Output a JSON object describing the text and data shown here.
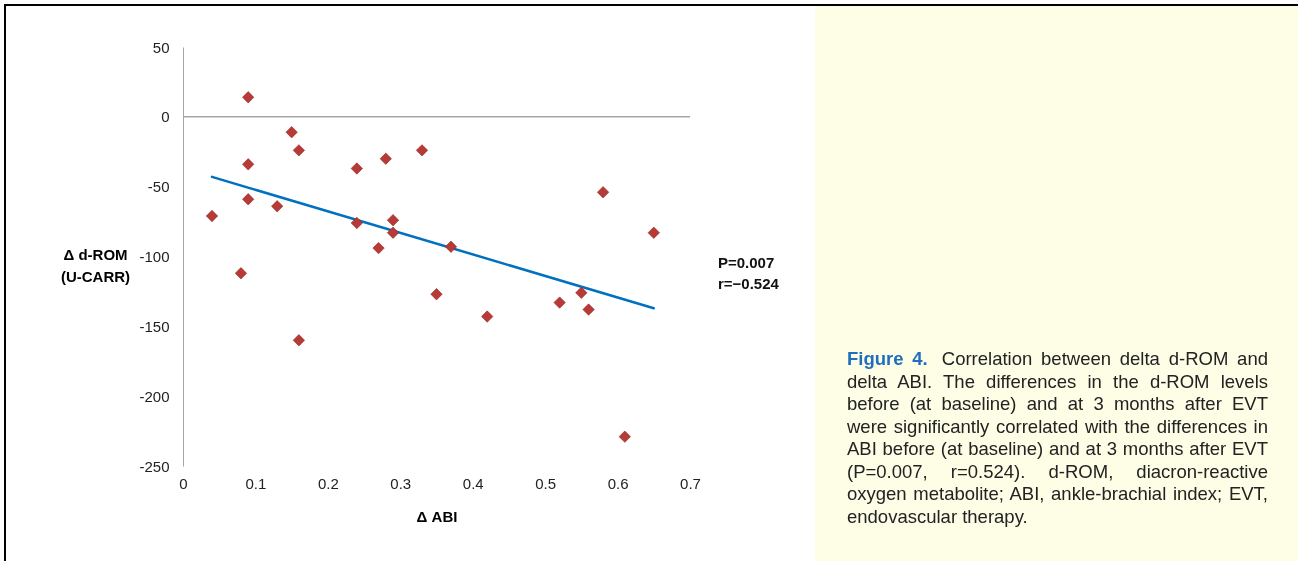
{
  "chart_data": {
    "type": "scatter",
    "title": "Figure 4.",
    "xlabel": "Δ ABI",
    "ylabel": "Δ d-ROM\n(U-CARR)",
    "annotations": [
      "P=0.007\nr=−0.524",
      "Correlation between delta d-ROM and delta ABI. The differences in the d-ROM levels before (at baseline) and at 3 months after EVT were significantly correlated with the differences in ABI before (at baseline) and at 3 months after EVT (P=0.007, r=0.524). d-ROM, diacron-reactive oxygen metabolite; ABI, ankle-brachial index; EVT, endovascular therapy."
    ],
    "xlim": [
      0,
      0.7
    ],
    "xticks": [
      0,
      0.1,
      0.2,
      0.3,
      0.4,
      0.5,
      0.6,
      0.7
    ],
    "ylim": [
      -250,
      50
    ],
    "yticks": [
      -250,
      -200,
      -150,
      -100,
      -50,
      0,
      50
    ],
    "ref_lines": [
      {
        "axis": "y",
        "value": 0,
        "color": "#a6a6a6"
      }
    ],
    "series": [
      {
        "type": "scatter",
        "color": "#b83a36",
        "marker": "diamond",
        "x": [
          0.04,
          0.08,
          0.09,
          0.09,
          0.09,
          0.13,
          0.15,
          0.16,
          0.16,
          0.24,
          0.24,
          0.27,
          0.28,
          0.29,
          0.29,
          0.33,
          0.35,
          0.37,
          0.42,
          0.52,
          0.55,
          0.56,
          0.58,
          0.61,
          0.65
        ],
        "values": [
          -71,
          -112,
          14,
          -34,
          -59,
          -64,
          -11,
          -24,
          -160,
          -37,
          -76,
          -94,
          -30,
          -74,
          -83,
          -24,
          -127,
          -93,
          -143,
          -133,
          -126,
          -138,
          -54,
          -229,
          -83
        ]
      },
      {
        "type": "line",
        "color": "#0070c0",
        "x": [
          0.04,
          0.65
        ],
        "values": [
          -43,
          -137
        ]
      }
    ]
  }
}
